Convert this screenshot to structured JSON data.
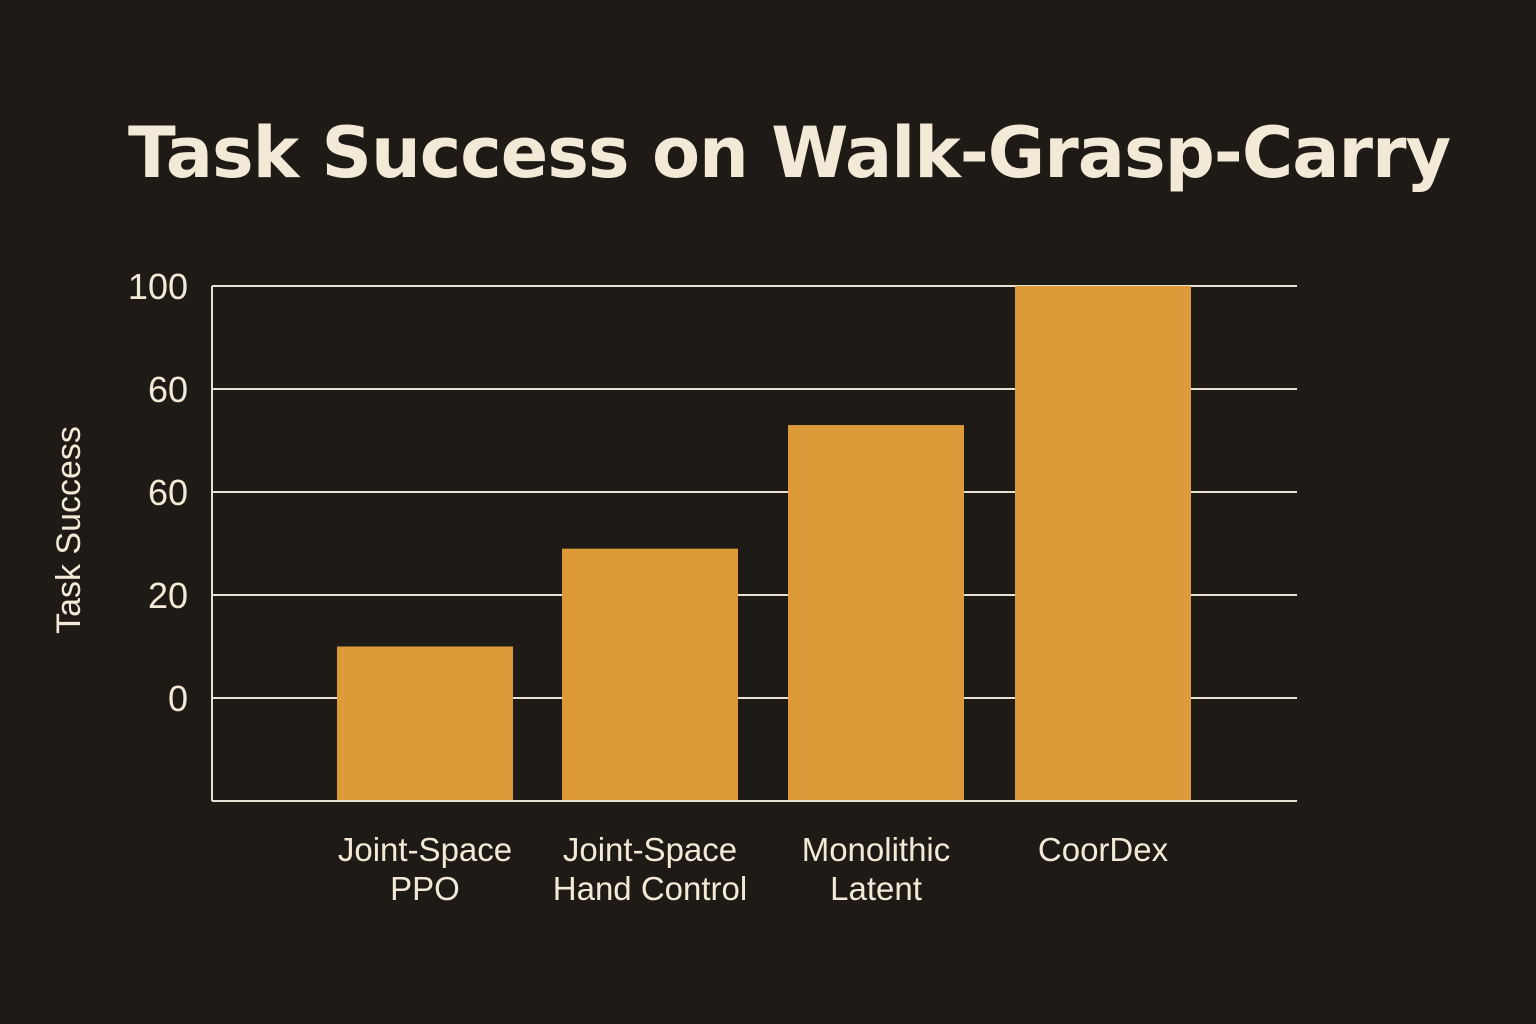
{
  "chart_data": {
    "type": "bar",
    "title": "Task Success on Walk-Grasp-Carry",
    "xlabel": "",
    "ylabel": "Task Success",
    "yticks": [
      "100",
      "60",
      "60",
      "20",
      "0"
    ],
    "categories": [
      [
        "Joint-Space",
        "PPO"
      ],
      [
        "Joint-Space",
        "Hand Control"
      ],
      [
        "Monolithic",
        "Latent"
      ],
      [
        "CoorDex"
      ]
    ],
    "values": [
      10,
      29,
      53,
      80
    ],
    "ylim": [
      -20,
      80
    ],
    "grid": true,
    "legend": "none",
    "colors": {
      "background": "#1e1a16",
      "bar": "#dd9a39",
      "grid": "#e8e2d4",
      "text": "#f2ead6"
    }
  }
}
